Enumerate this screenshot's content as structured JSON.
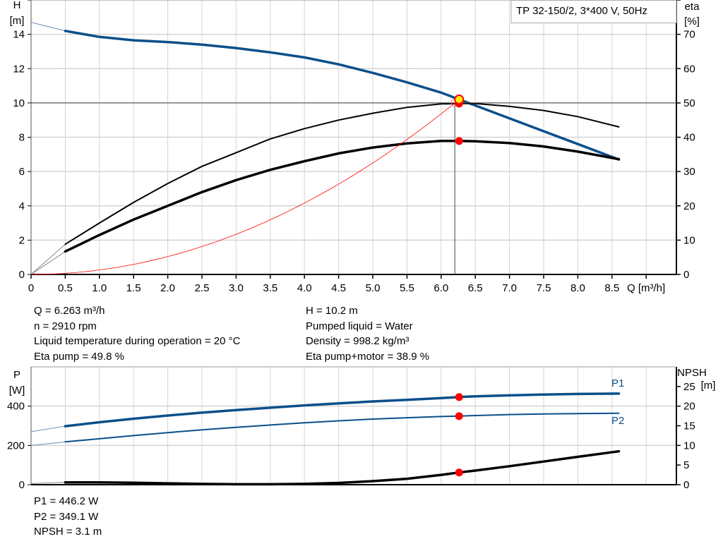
{
  "legend_box": "TP 32-150/2, 3*400 V, 50Hz",
  "operating_info": {
    "left": [
      "Q = 6.263 m³/h",
      "n = 2910 rpm",
      "Liquid temperature during operation = 20 °C",
      "Eta pump = 49.8 %"
    ],
    "right": [
      "H = 10.2 m",
      "Pumped liquid = Water",
      "Density = 998.2 kg/m³",
      "Eta pump+motor = 38.9 %"
    ],
    "bottom": [
      "P1 = 446.2 W",
      "P2 = 349.1 W",
      "NPSH = 3.1 m"
    ]
  },
  "colors": {
    "blue": "#0b4f8a",
    "black": "#000000",
    "red": "#ff0000",
    "marker_yellow": "#ffee00",
    "grid": "#d4d4d4"
  },
  "chart_data": [
    {
      "type": "line",
      "xlabel": "Q [m³/h]",
      "ylabel": "H [m]",
      "ylabel_lines": [
        "H",
        "[m]"
      ],
      "y2label_lines": [
        "eta",
        "[%]"
      ],
      "xlim": [
        0,
        9.5
      ],
      "ylim": [
        0,
        16
      ],
      "y2lim": [
        0,
        80
      ],
      "xticks": [
        "0",
        "0.5",
        "1.0",
        "1.5",
        "2.0",
        "2.5",
        "3.0",
        "3.5",
        "4.0",
        "4.5",
        "5.0",
        "5.5",
        "6.0",
        "6.5",
        "7.0",
        "7.5",
        "8.0",
        "8.5"
      ],
      "yticks": [
        "0",
        "2",
        "4",
        "6",
        "8",
        "10",
        "12",
        "14"
      ],
      "y2ticks": [
        "0",
        "10",
        "20",
        "30",
        "40",
        "50",
        "60",
        "70"
      ],
      "grid": true,
      "x": [
        0.5,
        1.0,
        1.5,
        2.0,
        2.5,
        3.0,
        3.5,
        4.0,
        4.5,
        5.0,
        5.5,
        6.0,
        6.263,
        6.5,
        7.0,
        7.5,
        8.0,
        8.6
      ],
      "series": [
        {
          "key": "H",
          "axis": "left",
          "color": "#0b4f8a",
          "extrapolated_start": [
            0,
            14.7
          ],
          "values": [
            14.2,
            13.85,
            13.65,
            13.55,
            13.4,
            13.2,
            12.95,
            12.65,
            12.25,
            11.75,
            11.2,
            10.6,
            10.2,
            9.85,
            9.1,
            8.35,
            7.6,
            6.7
          ]
        },
        {
          "key": "eta_pump",
          "axis": "right",
          "color": "#000000",
          "extrapolated_start": [
            0,
            0
          ],
          "values": [
            8.8,
            15,
            21,
            26.5,
            31.5,
            35.5,
            39.5,
            42.5,
            45,
            47,
            48.7,
            49.7,
            49.8,
            49.8,
            49,
            47.8,
            46,
            43
          ]
        },
        {
          "key": "eta_pump_motor",
          "axis": "right",
          "color": "#000000",
          "extrapolated_start": [
            0,
            0
          ],
          "values": [
            6.7,
            11.5,
            16,
            20,
            24,
            27.5,
            30.5,
            33,
            35.3,
            37,
            38.2,
            38.9,
            38.9,
            38.8,
            38.3,
            37.3,
            35.8,
            33.6
          ]
        }
      ],
      "system_curve": {
        "color": "#ff0000",
        "end": [
          6.263,
          10.2
        ]
      },
      "crosshair": {
        "q": 6.2,
        "h": 10
      },
      "operating_point": {
        "q": 6.263,
        "h": 10.2,
        "eta_pump": 49.8,
        "eta_pump_motor": 38.9
      }
    },
    {
      "type": "line",
      "ylabel_lines": [
        "P",
        "[W]"
      ],
      "y2label_lines": [
        "NPSH",
        "[m]"
      ],
      "xlim": [
        0,
        9.5
      ],
      "ylim": [
        0,
        600
      ],
      "y2lim": [
        0,
        30
      ],
      "yticks": [
        "0",
        "200",
        "400"
      ],
      "y2ticks": [
        "0",
        "5",
        "10",
        "15",
        "20",
        "25"
      ],
      "grid": true,
      "x": [
        0.5,
        1.0,
        1.5,
        2.0,
        2.5,
        3.0,
        3.5,
        4.0,
        4.5,
        5.0,
        5.5,
        6.0,
        6.263,
        6.5,
        7.0,
        7.5,
        8.0,
        8.6
      ],
      "series": [
        {
          "name": "P1",
          "axis": "left",
          "color": "#0b4f8a",
          "extrapolated_start": [
            0,
            270
          ],
          "values": [
            298,
            318,
            336,
            352,
            367,
            380,
            392,
            404,
            414,
            424,
            432,
            441,
            446.2,
            450,
            455,
            459,
            462,
            464
          ]
        },
        {
          "name": "P2",
          "axis": "left",
          "color": "#0b4f8a",
          "extrapolated_start": [
            0,
            200
          ],
          "values": [
            218,
            234,
            250,
            265,
            279,
            292,
            304,
            315,
            325,
            334,
            341,
            347,
            349.1,
            352,
            357,
            360,
            362,
            364
          ]
        },
        {
          "key": "NPSH",
          "axis": "right",
          "color": "#000000",
          "extrapolated_start": [
            0,
            0.3
          ],
          "values": [
            0.6,
            0.6,
            0.5,
            0.35,
            0.2,
            0.1,
            0.1,
            0.2,
            0.45,
            0.9,
            1.5,
            2.5,
            3.1,
            3.6,
            4.7,
            5.9,
            7.1,
            8.5
          ]
        }
      ],
      "operating_point": {
        "q": 6.263,
        "p1": 446.2,
        "p2": 349.1,
        "npsh": 3.1
      }
    }
  ]
}
